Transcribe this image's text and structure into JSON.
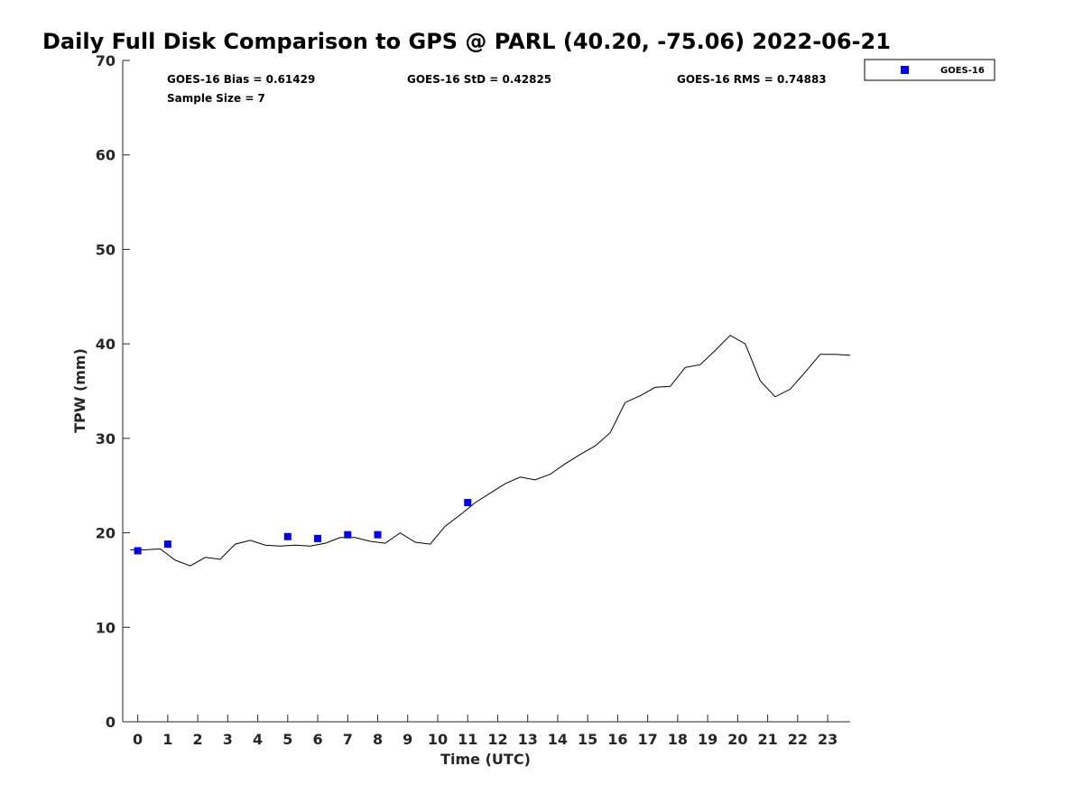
{
  "chart_data": {
    "type": "scatter",
    "title": "Daily Full Disk Comparison to GPS @ PARL (40.20, -75.06) 2022-06-21",
    "xlabel": "Time (UTC)",
    "ylabel": "TPW (mm)",
    "xlim": [
      -0.5,
      23.75
    ],
    "ylim": [
      0,
      70
    ],
    "xticks": [
      0,
      1,
      2,
      3,
      4,
      5,
      6,
      7,
      8,
      9,
      10,
      11,
      12,
      13,
      14,
      15,
      16,
      17,
      18,
      19,
      20,
      21,
      22,
      23
    ],
    "yticks": [
      0,
      10,
      20,
      30,
      40,
      50,
      60,
      70
    ],
    "grid": false,
    "legend_position": "top-right, outside plot area",
    "stats": {
      "bias": "GOES-16 Bias = 0.61429",
      "std": "GOES-16 StD = 0.42825",
      "rms": "GOES-16 RMS = 0.74883",
      "sample_size": "Sample Size = 7"
    },
    "series": [
      {
        "name": "GOES-16",
        "kind": "scatter",
        "color": "#0000ee",
        "marker": "square",
        "points": [
          {
            "x": 0,
            "y": 18.1
          },
          {
            "x": 1,
            "y": 18.8
          },
          {
            "x": 5,
            "y": 19.6
          },
          {
            "x": 6,
            "y": 19.4
          },
          {
            "x": 7,
            "y": 19.8
          },
          {
            "x": 8,
            "y": 19.8
          },
          {
            "x": 11,
            "y": 23.2
          }
        ]
      },
      {
        "kind": "line",
        "color": "#000000",
        "x": [
          -0.25,
          0.25,
          0.75,
          1.25,
          1.75,
          2.25,
          2.75,
          3.25,
          3.75,
          4.25,
          4.75,
          5.25,
          5.75,
          6.25,
          6.75,
          7.25,
          7.75,
          8.25,
          8.75,
          9.25,
          9.75,
          10.25,
          10.75,
          11.25,
          11.75,
          12.25,
          12.75,
          13.25,
          13.75,
          14.25,
          14.75,
          15.25,
          15.75,
          16.25,
          16.75,
          17.25,
          17.75,
          18.25,
          18.75,
          19.25,
          19.75,
          20.25,
          20.75,
          21.25,
          21.75,
          22.25,
          22.75,
          23.25,
          23.75
        ],
        "y": [
          18.2,
          18.2,
          18.3,
          17.1,
          16.5,
          17.4,
          17.2,
          18.8,
          19.2,
          18.7,
          18.6,
          18.7,
          18.6,
          18.9,
          19.5,
          19.5,
          19.1,
          18.9,
          20.0,
          19.0,
          18.8,
          20.7,
          21.9,
          23.2,
          24.2,
          25.2,
          25.9,
          25.6,
          26.2,
          27.3,
          28.3,
          29.2,
          30.6,
          33.8,
          34.5,
          35.4,
          35.5,
          37.5,
          37.8,
          39.3,
          40.9,
          40.0,
          36.1,
          34.4,
          35.2,
          37.0,
          38.9,
          38.9,
          38.8
        ]
      }
    ]
  }
}
